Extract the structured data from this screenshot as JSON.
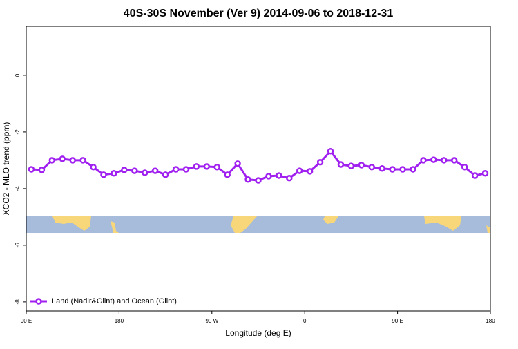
{
  "chart_data": {
    "type": "line",
    "title": "40S-30S November (Ver 9)   2014-09-06 to 2018-12-31",
    "x_label": "Longitude (deg E)",
    "y_label": "XCO2 - MLO trend (ppm)",
    "x": [
      95,
      105,
      115,
      125,
      135,
      145,
      155,
      165,
      175,
      185,
      195,
      205,
      215,
      225,
      235,
      245,
      255,
      265,
      275,
      285,
      295,
      305,
      315,
      325,
      335,
      345,
      355,
      365,
      375,
      385,
      395,
      405,
      415,
      425,
      435,
      445,
      455,
      465,
      475,
      485,
      495,
      505,
      515,
      525,
      535
    ],
    "series": [
      {
        "name": "Land (Nadir&Glint) and Ocean (Glint)",
        "color": "#a020f0",
        "values": [
          -3.32,
          -3.34,
          -3.0,
          -2.95,
          -3.0,
          -3.0,
          -3.24,
          -3.51,
          -3.46,
          -3.34,
          -3.37,
          -3.44,
          -3.37,
          -3.51,
          -3.32,
          -3.32,
          -3.22,
          -3.22,
          -3.24,
          -3.51,
          -3.12,
          -3.68,
          -3.71,
          -3.56,
          -3.54,
          -3.63,
          -3.37,
          -3.39,
          -3.07,
          -2.68,
          -3.15,
          -3.2,
          -3.17,
          -3.24,
          -3.29,
          -3.32,
          -3.32,
          -3.32,
          -3.0,
          -2.98,
          -3.0,
          -3.0,
          -3.24,
          -3.54,
          -3.46
        ]
      }
    ],
    "xlim": [
      90,
      540
    ],
    "xticks": [
      {
        "value": 90,
        "label": "90 E"
      },
      180,
      {
        "value": 270,
        "label": "90 W"
      },
      {
        "value": 360,
        "label": "0"
      },
      {
        "value": 450,
        "label": "90 E"
      },
      180
    ],
    "ylim": [
      -8.32,
      1.73
    ],
    "yticks": [
      0,
      -2,
      -4,
      -6,
      -8
    ],
    "legend": "bottom-left"
  }
}
